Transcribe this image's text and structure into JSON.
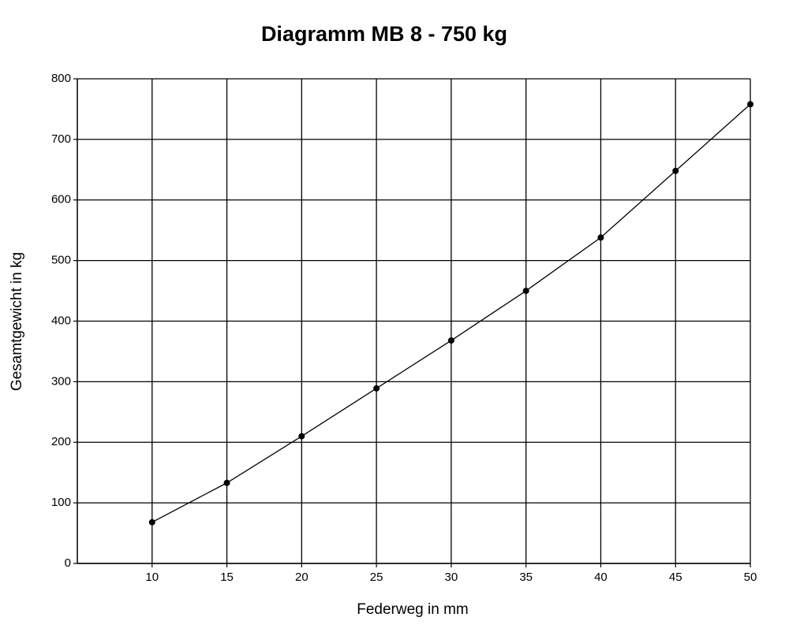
{
  "chart_data": {
    "type": "line",
    "title": "Diagramm MB 8 - 750 kg",
    "x_label": "Federweg in mm",
    "y_label": "Gesamtgewicht in kg",
    "x": [
      10,
      15,
      20,
      25,
      30,
      35,
      40,
      45,
      50
    ],
    "series": [
      {
        "color": "#000000",
        "values": [
          68,
          133,
          210,
          289,
          368,
          450,
          538,
          648,
          758
        ]
      }
    ],
    "xlim": [
      5,
      50
    ],
    "xticks": [
      10,
      15,
      20,
      25,
      30,
      35,
      40,
      45,
      50
    ],
    "ylim": [
      0,
      800
    ],
    "yticks": [
      0,
      100,
      200,
      300,
      400,
      500,
      600,
      700,
      800
    ],
    "grid": true
  }
}
